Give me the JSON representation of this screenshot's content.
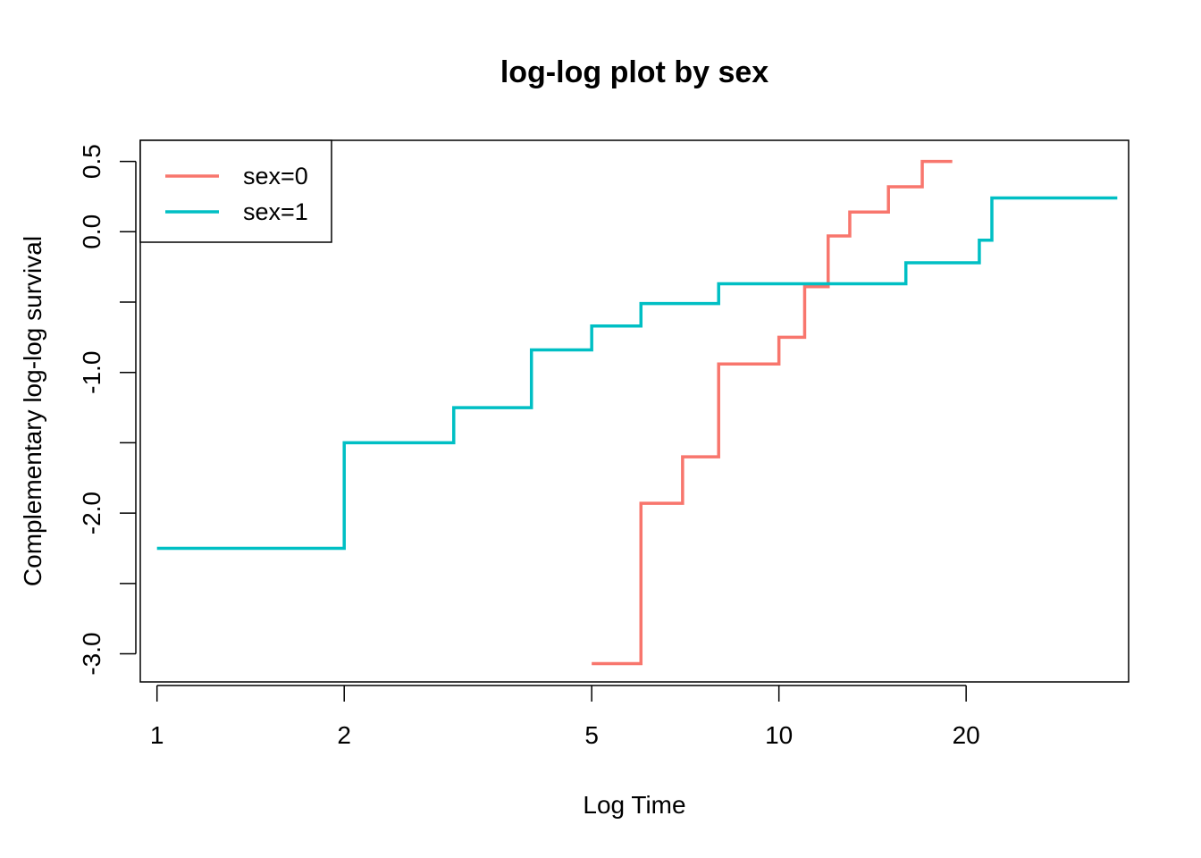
{
  "chart_data": {
    "type": "line",
    "step": true,
    "title": "log-log plot by sex",
    "xlabel": "Log Time",
    "ylabel": "Complementary log-log survival",
    "xscale": "log",
    "xlim": [
      0.94,
      36.5
    ],
    "ylim": [
      -3.2,
      0.65
    ],
    "xticks": [
      1,
      2,
      5,
      10,
      20
    ],
    "xtick_labels": [
      "1",
      "2",
      "5",
      "10",
      "20"
    ],
    "yticks": [
      -3.0,
      -2.5,
      -2.0,
      -1.5,
      -1.0,
      -0.5,
      0.0,
      0.5
    ],
    "ytick_labels": [
      "-3.0",
      "",
      "-2.0",
      "",
      "-1.0",
      "",
      "0.0",
      "0.5"
    ],
    "grid": false,
    "legend_position": "top-left",
    "series": [
      {
        "name": "sex=0",
        "color": "#F8766D",
        "x": [
          5,
          6,
          7,
          8,
          10,
          11,
          12,
          13,
          15,
          17,
          19
        ],
        "y": [
          -3.07,
          -1.93,
          -1.6,
          -0.94,
          -0.75,
          -0.39,
          -0.03,
          0.14,
          0.32,
          0.5,
          0.5
        ]
      },
      {
        "name": "sex=1",
        "color": "#00BFC4",
        "x": [
          1,
          2,
          3,
          4,
          5,
          6,
          8,
          16,
          21,
          22,
          35
        ],
        "y": [
          -2.25,
          -1.5,
          -1.25,
          -0.84,
          -0.67,
          -0.51,
          -0.37,
          -0.22,
          -0.06,
          0.24,
          0.24
        ]
      }
    ]
  }
}
